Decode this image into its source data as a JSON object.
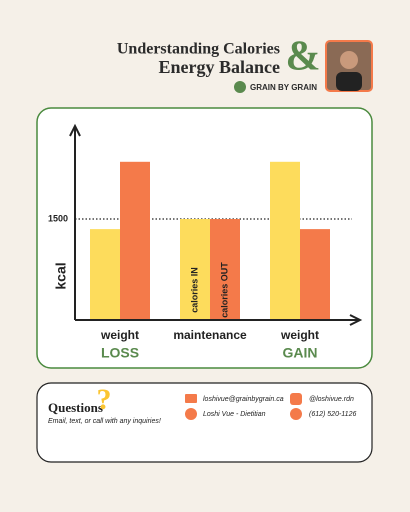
{
  "header": {
    "title_line1": "Understanding Calories",
    "title_line2": "Energy Balance",
    "ampersand": "&",
    "brand": "GRAIN BY GRAIN"
  },
  "chart_data": {
    "type": "bar",
    "categories": [
      "weight",
      "maintenance",
      "weight"
    ],
    "category_tags": [
      "LOSS",
      null,
      "GAIN"
    ],
    "ylabel": "kcal",
    "series": [
      {
        "name": "calories IN",
        "color": "#fddc5c",
        "values": [
          1350,
          1500,
          2350
        ]
      },
      {
        "name": "calories OUT",
        "color": "#f47a4a",
        "values": [
          2350,
          1500,
          1350
        ]
      }
    ],
    "ylim": [
      0,
      2800
    ],
    "yticks": [
      1500
    ],
    "reference_line": true
  },
  "footer": {
    "heading": "Questions",
    "question_mark": "?",
    "subtext": "Email, text, or call with any inquiries!",
    "email": "loshivue@grainbygrain.ca",
    "instagram": "@loshivue.rdn",
    "facebook": "Loshi Vue - Dietitian",
    "phone": "(612) 520-1126"
  }
}
